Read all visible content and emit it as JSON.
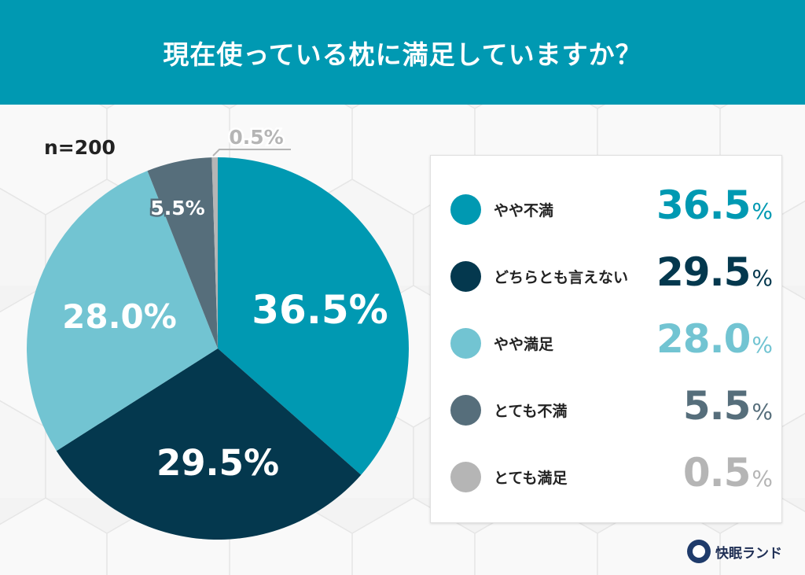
{
  "header": {
    "title": "現在使っている枕に満足していますか？"
  },
  "sample": {
    "label": "n=200"
  },
  "colors": {
    "header_bg": "#0099b2",
    "yaya_fuman": "#0099b2",
    "dochira": "#04384e",
    "yaya_manzoku": "#72c4d2",
    "totemo_fuman": "#566e7b",
    "totemo_manzoku": "#b5b5b5"
  },
  "pie_labels": {
    "yaya_fuman": "36.5%",
    "dochira": "29.5%",
    "yaya_manzoku": "28.0%",
    "totemo_fuman": "5.5%",
    "totemo_manzoku": "0.5%"
  },
  "legend": {
    "items": [
      {
        "label": "やや不満",
        "number": "36.5",
        "unit": "%",
        "color": "#0099b2"
      },
      {
        "label": "どちらとも言えない",
        "number": "29.5",
        "unit": "%",
        "color": "#04384e"
      },
      {
        "label": "やや満足",
        "number": "28.0",
        "unit": "%",
        "color": "#72c4d2"
      },
      {
        "label": "とても不満",
        "number": "5.5",
        "unit": "%",
        "color": "#566e7b"
      },
      {
        "label": "とても満足",
        "number": "0.5",
        "unit": "%",
        "color": "#b5b5b5"
      }
    ]
  },
  "logo": {
    "text": "快眠ランド"
  },
  "chart_data": {
    "type": "pie",
    "title": "現在使っている枕に満足していますか？",
    "subtitle": "n=200",
    "categories": [
      "やや不満",
      "どちらとも言えない",
      "やや満足",
      "とても不満",
      "とても満足"
    ],
    "values": [
      36.5,
      29.5,
      28.0,
      5.5,
      0.5
    ],
    "unit": "%",
    "colors": [
      "#0099b2",
      "#04384e",
      "#72c4d2",
      "#566e7b",
      "#b5b5b5"
    ],
    "start_angle": "12 o'clock",
    "direction": "clockwise",
    "legend_position": "right"
  }
}
